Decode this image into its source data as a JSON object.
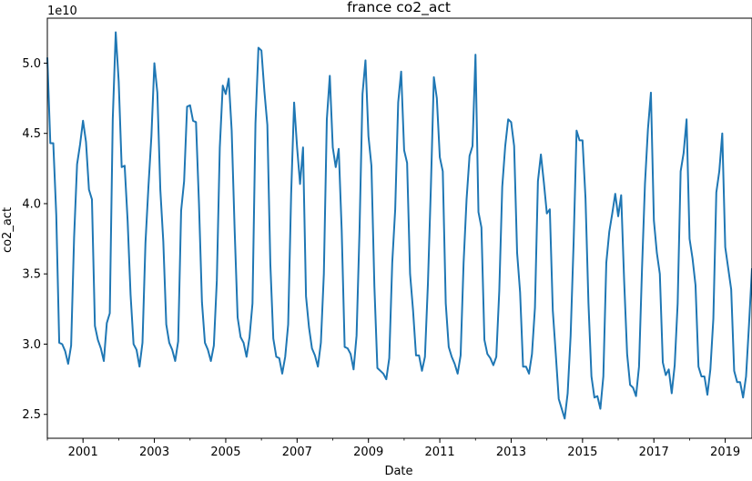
{
  "chart_data": {
    "type": "line",
    "title": "france co2_act",
    "xlabel": "Date",
    "ylabel": "co2_act",
    "y_multiplier_label": "1e10",
    "y_scale": 10000000000.0,
    "xlim": [
      "2000-01",
      "2019-10"
    ],
    "ylim": [
      23300000000,
      53200000000
    ],
    "grid": false,
    "line_color": "#1f77b4",
    "x_ticks": [
      "2001",
      "2003",
      "2005",
      "2007",
      "2009",
      "2011",
      "2013",
      "2015",
      "2017",
      "2019"
    ],
    "y_ticks": [
      "2.5",
      "3.0",
      "3.5",
      "4.0",
      "4.5",
      "5.0"
    ],
    "y_tick_values": [
      25000000000,
      30000000000,
      35000000000,
      40000000000,
      45000000000,
      50000000000
    ],
    "series": [
      {
        "x": [
          "2000-01",
          "2000-02",
          "2000-03",
          "2000-04",
          "2000-05",
          "2000-06",
          "2000-07",
          "2000-08",
          "2000-09",
          "2000-10",
          "2000-11",
          "2000-12",
          "2001-01",
          "2001-02",
          "2001-03",
          "2001-04",
          "2001-05",
          "2001-06",
          "2001-07",
          "2001-08",
          "2001-09",
          "2001-10",
          "2001-11",
          "2001-12",
          "2002-01",
          "2002-02",
          "2002-03",
          "2002-04",
          "2002-05",
          "2002-06",
          "2002-07",
          "2002-08",
          "2002-09",
          "2002-10",
          "2002-11",
          "2002-12",
          "2003-01",
          "2003-02",
          "2003-03",
          "2003-04",
          "2003-05",
          "2003-06",
          "2003-07",
          "2003-08",
          "2003-09",
          "2003-10",
          "2003-11",
          "2003-12",
          "2004-01",
          "2004-02",
          "2004-03",
          "2004-04",
          "2004-05",
          "2004-06",
          "2004-07",
          "2004-08",
          "2004-09",
          "2004-10",
          "2004-11",
          "2004-12",
          "2005-01",
          "2005-02",
          "2005-03",
          "2005-04",
          "2005-05",
          "2005-06",
          "2005-07",
          "2005-08",
          "2005-09",
          "2005-10",
          "2005-11",
          "2005-12",
          "2006-01",
          "2006-02",
          "2006-03",
          "2006-04",
          "2006-05",
          "2006-06",
          "2006-07",
          "2006-08",
          "2006-09",
          "2006-10",
          "2006-11",
          "2006-12",
          "2007-01",
          "2007-02",
          "2007-03",
          "2007-04",
          "2007-05",
          "2007-06",
          "2007-07",
          "2007-08",
          "2007-09",
          "2007-10",
          "2007-11",
          "2007-12",
          "2008-01",
          "2008-02",
          "2008-03",
          "2008-04",
          "2008-05",
          "2008-06",
          "2008-07",
          "2008-08",
          "2008-09",
          "2008-10",
          "2008-11",
          "2008-12",
          "2009-01",
          "2009-02",
          "2009-03",
          "2009-04",
          "2009-05",
          "2009-06",
          "2009-07",
          "2009-08",
          "2009-09",
          "2009-10",
          "2009-11",
          "2009-12",
          "2010-01",
          "2010-02",
          "2010-03",
          "2010-04",
          "2010-05",
          "2010-06",
          "2010-07",
          "2010-08",
          "2010-09",
          "2010-10",
          "2010-11",
          "2010-12",
          "2011-01",
          "2011-02",
          "2011-03",
          "2011-04",
          "2011-05",
          "2011-06",
          "2011-07",
          "2011-08",
          "2011-09",
          "2011-10",
          "2011-11",
          "2011-12",
          "2012-01",
          "2012-02",
          "2012-03",
          "2012-04",
          "2012-05",
          "2012-06",
          "2012-07",
          "2012-08",
          "2012-09",
          "2012-10",
          "2012-11",
          "2012-12",
          "2013-01",
          "2013-02",
          "2013-03",
          "2013-04",
          "2013-05",
          "2013-06",
          "2013-07",
          "2013-08",
          "2013-09",
          "2013-10",
          "2013-11",
          "2013-12",
          "2014-01",
          "2014-02",
          "2014-03",
          "2014-04",
          "2014-05",
          "2014-06",
          "2014-07",
          "2014-08",
          "2014-09",
          "2014-10",
          "2014-11",
          "2014-12",
          "2015-01",
          "2015-02",
          "2015-03",
          "2015-04",
          "2015-05",
          "2015-06",
          "2015-07",
          "2015-08",
          "2015-09",
          "2015-10",
          "2015-11",
          "2015-12",
          "2016-01",
          "2016-02",
          "2016-03",
          "2016-04",
          "2016-05",
          "2016-06",
          "2016-07",
          "2016-08",
          "2016-09",
          "2016-10",
          "2016-11",
          "2016-12",
          "2017-01",
          "2017-02",
          "2017-03",
          "2017-04",
          "2017-05",
          "2017-06",
          "2017-07",
          "2017-08",
          "2017-09",
          "2017-10",
          "2017-11",
          "2017-12",
          "2018-01",
          "2018-02",
          "2018-03",
          "2018-04",
          "2018-05",
          "2018-06",
          "2018-07",
          "2018-08",
          "2018-09",
          "2018-10",
          "2018-11",
          "2018-12",
          "2019-01",
          "2019-02",
          "2019-03",
          "2019-04",
          "2019-05",
          "2019-06",
          "2019-07",
          "2019-08",
          "2019-09",
          "2019-10"
        ],
        "values": [
          5.04,
          4.43,
          4.43,
          3.92,
          3.01,
          3.0,
          2.95,
          2.86,
          2.99,
          3.76,
          4.28,
          4.42,
          4.59,
          4.44,
          4.1,
          4.03,
          3.13,
          3.03,
          2.97,
          2.88,
          3.15,
          3.22,
          4.6,
          5.22,
          4.87,
          4.26,
          4.27,
          3.88,
          3.35,
          3.0,
          2.96,
          2.84,
          3.01,
          3.72,
          4.12,
          4.48,
          5.0,
          4.79,
          4.1,
          3.73,
          3.14,
          3.01,
          2.96,
          2.88,
          3.02,
          3.95,
          4.16,
          4.69,
          4.7,
          4.59,
          4.58,
          4.0,
          3.3,
          3.01,
          2.96,
          2.88,
          2.99,
          3.45,
          4.4,
          4.84,
          4.78,
          4.89,
          4.52,
          3.81,
          3.19,
          3.05,
          3.01,
          2.91,
          3.05,
          3.29,
          4.57,
          5.11,
          5.09,
          4.8,
          4.56,
          3.57,
          3.04,
          2.91,
          2.9,
          2.79,
          2.91,
          3.14,
          4.07,
          4.72,
          4.4,
          4.14,
          4.4,
          3.34,
          3.12,
          2.97,
          2.92,
          2.84,
          3.01,
          3.5,
          4.6,
          4.91,
          4.4,
          4.26,
          4.39,
          3.81,
          2.98,
          2.97,
          2.93,
          2.82,
          3.06,
          3.81,
          4.78,
          5.02,
          4.48,
          4.27,
          3.41,
          2.83,
          2.81,
          2.79,
          2.75,
          2.9,
          3.58,
          3.96,
          4.72,
          4.94,
          4.38,
          4.29,
          3.5,
          3.24,
          2.92,
          2.92,
          2.81,
          2.91,
          3.43,
          4.12,
          4.9,
          4.75,
          4.33,
          4.23,
          3.29,
          2.98,
          2.91,
          2.86,
          2.79,
          2.92,
          3.58,
          4.03,
          4.34,
          4.41,
          5.06,
          3.94,
          3.83,
          3.03,
          2.93,
          2.9,
          2.85,
          2.91,
          3.38,
          4.12,
          4.41,
          4.6,
          4.58,
          4.41,
          3.65,
          3.37,
          2.84,
          2.84,
          2.79,
          2.93,
          3.26,
          4.16,
          4.35,
          4.15,
          3.93,
          3.96,
          3.24,
          2.93,
          2.61,
          2.54,
          2.47,
          2.65,
          3.06,
          3.72,
          4.52,
          4.45,
          4.45,
          4.04,
          3.29,
          2.77,
          2.62,
          2.63,
          2.54,
          2.77,
          3.58,
          3.8,
          3.93,
          4.07,
          3.91,
          4.06,
          3.45,
          2.93,
          2.71,
          2.69,
          2.63,
          2.84,
          3.53,
          4.14,
          4.53,
          4.79,
          3.88,
          3.65,
          3.5,
          2.87,
          2.78,
          2.82,
          2.65,
          2.85,
          3.29,
          4.23,
          4.36,
          4.6,
          3.75,
          3.61,
          3.42,
          2.84,
          2.77,
          2.77,
          2.64,
          2.82,
          3.18,
          4.08,
          4.23,
          4.5,
          3.69,
          3.54,
          3.39,
          2.81,
          2.73,
          2.73,
          2.62,
          2.77,
          3.14,
          3.54
        ]
      }
    ]
  }
}
